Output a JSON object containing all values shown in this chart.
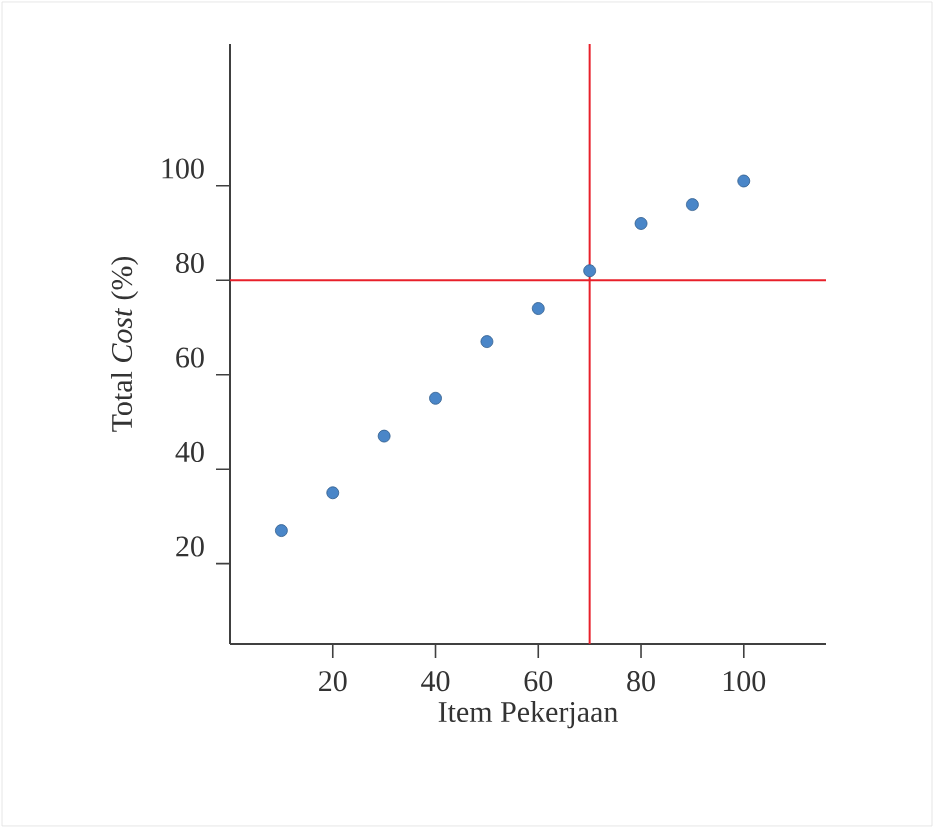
{
  "chart_data": {
    "type": "scatter",
    "xlabel": "Item Pekerjaan",
    "ylabel": "Total *Cost* (%)",
    "x": [
      10,
      20,
      30,
      40,
      50,
      60,
      70,
      80,
      90,
      100
    ],
    "series": [
      {
        "color": "#4a86c8",
        "values": [
          27,
          35,
          47,
          55,
          67,
          74,
          82,
          92,
          96,
          101
        ]
      }
    ],
    "xlim": [
      0,
      116
    ],
    "ylim": [
      3,
      130
    ],
    "xticks": [
      20,
      40,
      60,
      80,
      100
    ],
    "yticks": [
      20,
      40,
      60,
      80,
      100
    ],
    "grid": false,
    "ref_lines": [
      {
        "axis": "y",
        "value": 80,
        "color": "#e8202a"
      },
      {
        "axis": "x",
        "value": 70,
        "color": "#e8202a"
      }
    ]
  }
}
